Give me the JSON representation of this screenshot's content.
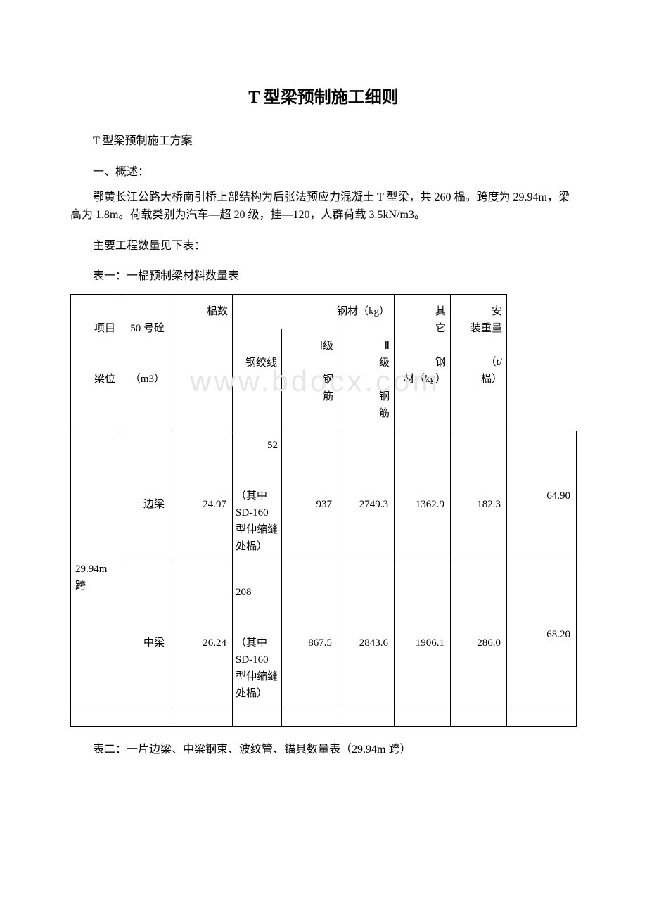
{
  "title": "T 型梁预制施工细则",
  "subtitle": "T 型梁预制施工方案",
  "section1_label": "一、概述：",
  "description": "鄂黄长江公路大桥南引桥上部结构为后张法预应力混凝土 T 型梁，共 260 榀。跨度为 29.94m，梁高为 1.8m。荷载类别为汽车—超 20 级，挂—120，人群荷载 3.5kN/m3。",
  "quantity_intro": "主要工程数量见下表：",
  "table1_caption": "表一：一榀预制梁材料数量表",
  "table2_caption": "表二：一片边梁、中梁钢束、波纹管、锚具数量表（29.94m 跨）",
  "watermark_text": "www.bdocx.com",
  "table1": {
    "headers": {
      "item_beam": "　　　项目\n\n　　　梁位",
      "concrete": "　　　50 号砼\n\n　　　（m3）",
      "count": "　　　榀数",
      "steel_group": "钢材（kg）",
      "steel_strand": "　　　钢绞线",
      "rebar_i": "　　　Ⅰ级\n\n　　　钢筋",
      "rebar_ii": "　　　Ⅱ级\n\n　　　钢筋",
      "other_steel": "　　　其它\n\n　　　钢材（kg）",
      "install_weight": "　　　安装重量\n\n　　　（t/榀）"
    },
    "span_label": "　　　29.94m跨",
    "rows": [
      {
        "beam_type": "　　　边梁",
        "concrete": "　　　24.97",
        "count": "　　　52\n\n　　　（其中SD-160 型伸缩缝处榀）",
        "steel_strand": "　　　937",
        "rebar_i": "　　　2749.3",
        "rebar_ii": "　　　1362.9",
        "other_steel": "　　　182.3",
        "install_weight": "　　　64.90"
      },
      {
        "beam_type": "　　　中梁",
        "concrete": "　　　26.24",
        "count": "　　　208\n\n　　　（其中SD-160 型伸缩缝处榀）",
        "steel_strand": "　　　867.5",
        "rebar_i": "　　　2843.6",
        "rebar_ii": "　　　1906.1",
        "other_steel": "　　　286.0",
        "install_weight": "　　　68.20"
      }
    ]
  }
}
